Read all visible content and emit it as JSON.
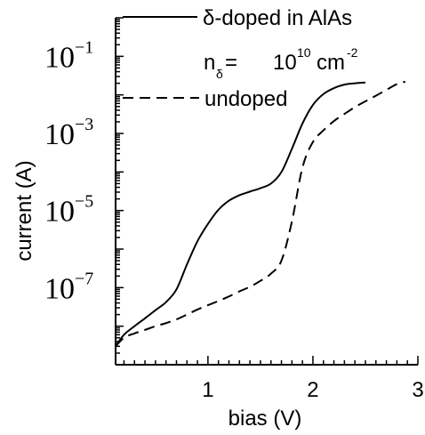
{
  "chart_data": {
    "type": "line",
    "xlabel": "bias (V)",
    "ylabel": "current (A)",
    "xlim": [
      0.12,
      3.0
    ],
    "ylim": [
      1e-09,
      1.0
    ],
    "yscale": "log",
    "x_ticks": [
      {
        "value": 1,
        "label": "1"
      },
      {
        "value": 2,
        "label": "2"
      },
      {
        "value": 3,
        "label": "3"
      }
    ],
    "y_ticks": [
      {
        "value": 0.1,
        "base": "10",
        "exp": "−1"
      },
      {
        "value": 0.001,
        "base": "10",
        "exp": "−3"
      },
      {
        "value": 1e-05,
        "base": "10",
        "exp": "−5"
      },
      {
        "value": 1e-07,
        "base": "10",
        "exp": "−7"
      }
    ],
    "legend": {
      "placement": "top",
      "entries": [
        {
          "series": 0,
          "text": "δ-doped in AlAs"
        },
        {
          "series": 1,
          "text": "undoped"
        }
      ],
      "annotation": {
        "n": "n",
        "sub": "δ",
        "eq": "=",
        "value": "10",
        "exp": "10",
        "unit": "cm",
        "unit_exp": "-2"
      }
    },
    "grid": false,
    "series": [
      {
        "name": "δ-doped in AlAs",
        "style": "solid",
        "color": "#000000",
        "points": [
          [
            0.12,
            3e-09
          ],
          [
            0.2,
            6e-09
          ],
          [
            0.3,
            1e-08
          ],
          [
            0.4,
            1.6e-08
          ],
          [
            0.5,
            2.6e-08
          ],
          [
            0.6,
            4.2e-08
          ],
          [
            0.7,
            9e-08
          ],
          [
            0.8,
            4e-07
          ],
          [
            0.9,
            1.6e-06
          ],
          [
            1.0,
            4.5e-06
          ],
          [
            1.1,
            1.05e-05
          ],
          [
            1.2,
            1.8e-05
          ],
          [
            1.3,
            2.5e-05
          ],
          [
            1.4,
            3.1e-05
          ],
          [
            1.5,
            3.8e-05
          ],
          [
            1.6,
            5e-05
          ],
          [
            1.7,
            0.0001
          ],
          [
            1.8,
            0.0004
          ],
          [
            1.9,
            0.0018
          ],
          [
            2.0,
            0.0055
          ],
          [
            2.1,
            0.0105
          ],
          [
            2.2,
            0.015
          ],
          [
            2.3,
            0.0185
          ],
          [
            2.4,
            0.02
          ],
          [
            2.5,
            0.021
          ]
        ]
      },
      {
        "name": "undoped",
        "style": "dashed",
        "color": "#000000",
        "points": [
          [
            0.12,
            3e-09
          ],
          [
            0.2,
            5e-09
          ],
          [
            0.3,
            6.5e-09
          ],
          [
            0.4,
            8e-09
          ],
          [
            0.5,
            1e-08
          ],
          [
            0.6,
            1.2e-08
          ],
          [
            0.7,
            1.5e-08
          ],
          [
            0.8,
            2e-08
          ],
          [
            0.9,
            2.7e-08
          ],
          [
            1.0,
            3.5e-08
          ],
          [
            1.1,
            4.5e-08
          ],
          [
            1.2,
            5.9e-08
          ],
          [
            1.3,
            8e-08
          ],
          [
            1.4,
            1.05e-07
          ],
          [
            1.5,
            1.5e-07
          ],
          [
            1.6,
            2.3e-07
          ],
          [
            1.7,
            5e-07
          ],
          [
            1.8,
            5.2e-06
          ],
          [
            1.9,
            0.00013
          ],
          [
            2.0,
            0.0006
          ],
          [
            2.1,
            0.0012
          ],
          [
            2.2,
            0.0021
          ],
          [
            2.3,
            0.0032
          ],
          [
            2.4,
            0.0048
          ],
          [
            2.5,
            0.0068
          ],
          [
            2.6,
            0.0095
          ],
          [
            2.7,
            0.0135
          ],
          [
            2.8,
            0.019
          ],
          [
            2.88,
            0.022
          ]
        ]
      }
    ]
  }
}
